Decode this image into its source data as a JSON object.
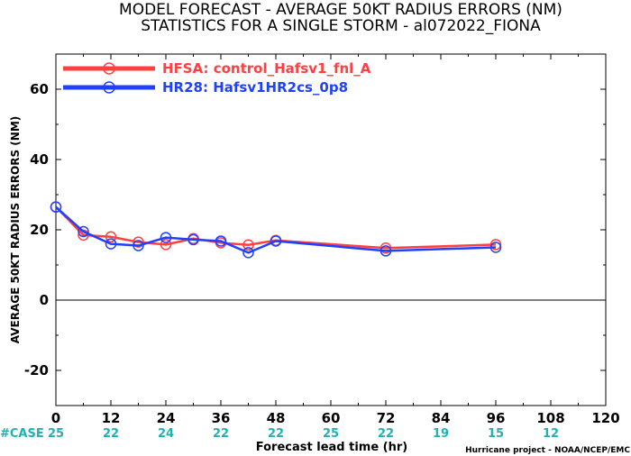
{
  "chart_data": {
    "type": "line",
    "title_line1": "MODEL FORECAST - AVERAGE 50KT RADIUS ERRORS (NM)",
    "title_line2": "STATISTICS FOR A SINGLE STORM - al072022_FIONA",
    "xlabel": "Forecast lead time (hr)",
    "ylabel": "AVERAGE 50KT RADIUS ERRORS (NM)",
    "xlim": [
      0,
      120
    ],
    "ylim": [
      -30,
      70
    ],
    "x_ticks": [
      0,
      12,
      24,
      36,
      48,
      60,
      72,
      84,
      96,
      108,
      120
    ],
    "y_ticks": [
      -20,
      0,
      20,
      40,
      60
    ],
    "zero_line": true,
    "legend_position": "top-left",
    "series": [
      {
        "name": "HFSA: control_Hafsv1_fnl_A",
        "color": "#ff4040",
        "x": [
          0,
          6,
          12,
          18,
          24,
          30,
          36,
          42,
          48,
          72,
          96
        ],
        "y": [
          26.5,
          18.5,
          18.0,
          16.5,
          15.8,
          17.5,
          16.3,
          15.7,
          17.0,
          14.8,
          15.8
        ]
      },
      {
        "name": "HR28: Hafsv1HR2cs_0p8",
        "color": "#2040ff",
        "x": [
          0,
          6,
          12,
          18,
          24,
          30,
          36,
          42,
          48,
          72,
          96
        ],
        "y": [
          26.5,
          19.5,
          16.0,
          15.5,
          17.8,
          17.2,
          16.8,
          13.5,
          16.8,
          14.0,
          15.0
        ]
      }
    ],
    "case_label": "#CASE",
    "case_counts": [
      {
        "x": 0,
        "n": "25"
      },
      {
        "x": 12,
        "n": "22"
      },
      {
        "x": 24,
        "n": "24"
      },
      {
        "x": 36,
        "n": "22"
      },
      {
        "x": 48,
        "n": "22"
      },
      {
        "x": 60,
        "n": "25"
      },
      {
        "x": 72,
        "n": "22"
      },
      {
        "x": 84,
        "n": "19"
      },
      {
        "x": 96,
        "n": "15"
      },
      {
        "x": 108,
        "n": "12"
      }
    ],
    "credit": "Hurricane project - NOAA/NCEP/EMC"
  }
}
